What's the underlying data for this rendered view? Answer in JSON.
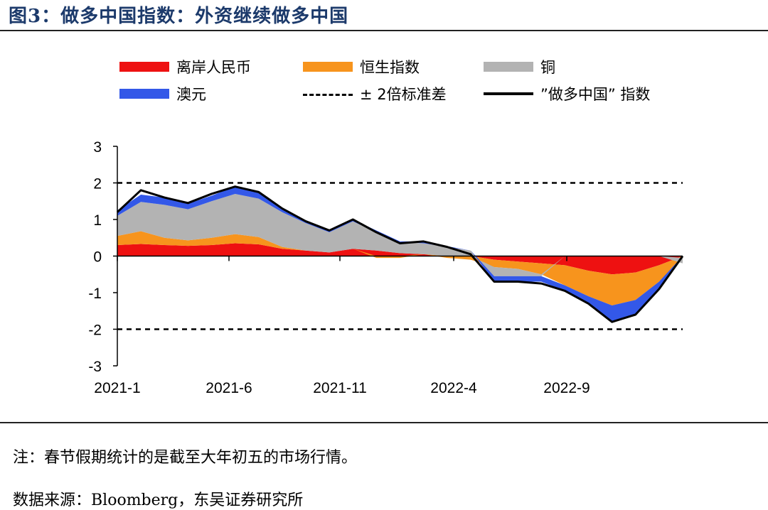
{
  "header": {
    "title": "图3：做多中国指数：外资继续做多中国"
  },
  "colors": {
    "cnh": "#ee1111",
    "hsi": "#f7941d",
    "copper": "#b3b3b3",
    "aud": "#3358e8",
    "line": "#000000"
  },
  "legend": [
    {
      "key": "cnh",
      "label": "离岸人民币",
      "kind": "area"
    },
    {
      "key": "hsi",
      "label": "恒生指数",
      "kind": "area"
    },
    {
      "key": "copper",
      "label": "铜",
      "kind": "area"
    },
    {
      "key": "aud",
      "label": "澳元",
      "kind": "area"
    },
    {
      "key": "band",
      "label": "±  2倍标准差",
      "kind": "dashed"
    },
    {
      "key": "index",
      "label": "”做多中国” 指数",
      "kind": "line"
    }
  ],
  "chart_data": {
    "type": "area",
    "title": "做多中国指数：外资继续做多中国",
    "xlabel": "",
    "ylabel": "",
    "ylim": [
      -3,
      3
    ],
    "yticks": [
      "3",
      "2",
      "1",
      "0",
      "-1",
      "-2",
      "-3"
    ],
    "xticks": [
      "2021-1",
      "2021-6",
      "2021-11",
      "2022-4",
      "2022-9"
    ],
    "reference_lines": [
      2,
      -2
    ],
    "x": [
      "2021-01",
      "2021-02",
      "2021-03",
      "2021-04",
      "2021-05",
      "2021-06",
      "2021-07",
      "2021-08",
      "2021-09",
      "2021-10",
      "2021-11",
      "2021-12",
      "2022-01",
      "2022-02",
      "2022-03",
      "2022-04",
      "2022-05",
      "2022-06",
      "2022-07",
      "2022-08",
      "2022-09",
      "2022-10",
      "2022-11",
      "2022-12",
      "2023-01"
    ],
    "series": [
      {
        "name": "离岸人民币",
        "key": "cnh",
        "values": [
          0.3,
          0.33,
          0.3,
          0.28,
          0.3,
          0.35,
          0.32,
          0.2,
          0.15,
          0.1,
          0.2,
          0.15,
          0.08,
          0.05,
          0.0,
          0.0,
          -0.1,
          -0.15,
          -0.2,
          -0.25,
          -0.4,
          -0.5,
          -0.45,
          -0.25,
          0.0
        ]
      },
      {
        "name": "恒生指数",
        "key": "hsi",
        "values": [
          0.25,
          0.35,
          0.2,
          0.15,
          0.2,
          0.25,
          0.2,
          0.05,
          0.0,
          0.0,
          0.0,
          -0.05,
          -0.05,
          0.0,
          -0.05,
          -0.1,
          -0.2,
          -0.2,
          -0.3,
          -0.55,
          -0.7,
          -0.85,
          -0.75,
          -0.45,
          -0.05
        ]
      },
      {
        "name": "铜",
        "key": "copper",
        "values": [
          0.55,
          0.8,
          0.9,
          0.85,
          1.0,
          1.1,
          1.05,
          0.95,
          0.75,
          0.55,
          0.75,
          0.5,
          0.3,
          0.3,
          0.25,
          0.15,
          -0.25,
          -0.2,
          -0.05,
          0.0,
          0.0,
          0.0,
          0.0,
          0.0,
          -0.15
        ]
      },
      {
        "name": "澳元",
        "key": "aud",
        "values": [
          0.15,
          0.2,
          0.2,
          0.15,
          0.15,
          0.2,
          0.15,
          0.1,
          0.05,
          0.05,
          0.05,
          0.05,
          0.02,
          0.05,
          0.02,
          0.0,
          -0.15,
          -0.15,
          -0.15,
          -0.15,
          -0.2,
          -0.45,
          -0.4,
          -0.2,
          0.0
        ]
      }
    ],
    "index_line": {
      "name": "”做多中国” 指数",
      "values": [
        1.2,
        1.8,
        1.6,
        1.45,
        1.7,
        1.9,
        1.75,
        1.3,
        0.95,
        0.7,
        1.0,
        0.65,
        0.35,
        0.4,
        0.25,
        0.05,
        -0.7,
        -0.7,
        -0.75,
        -0.95,
        -1.3,
        -1.8,
        -1.6,
        -0.9,
        0.0
      ]
    }
  },
  "notes": {
    "note": "注：春节假期统计的是截至大年初五的市场行情。",
    "source": "数据来源：Bloomberg，东吴证券研究所"
  }
}
